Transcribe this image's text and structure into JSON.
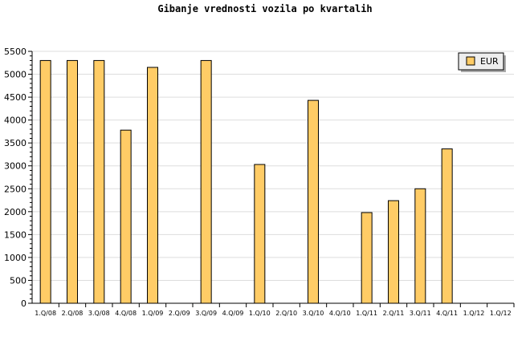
{
  "chart_data": {
    "type": "bar",
    "title": "Gibanje vrednosti vozila po kvartalih",
    "xlabel": "",
    "ylabel": "",
    "categories": [
      "1.Q/08",
      "2.Q/08",
      "3.Q/08",
      "4.Q/08",
      "1.Q/09",
      "2.Q/09",
      "3.Q/09",
      "4.Q/09",
      "1.Q/10",
      "2.Q/10",
      "3.Q/10",
      "4.Q/10",
      "1.Q/11",
      "2.Q/11",
      "3.Q/11",
      "4.Q/11",
      "1.Q/12",
      "1.Q/12"
    ],
    "series": [
      {
        "name": "EUR",
        "color": "#ffcc66",
        "values": [
          5300,
          5300,
          5300,
          3780,
          5150,
          0,
          5300,
          0,
          3030,
          0,
          4430,
          0,
          1980,
          2240,
          2500,
          3370,
          0,
          0
        ]
      }
    ],
    "ylim": [
      0,
      5500
    ],
    "yticks": [
      0,
      500,
      1000,
      1500,
      2000,
      2500,
      3000,
      3500,
      4000,
      4500,
      5000,
      5500
    ],
    "grid": true,
    "legend": "top-right"
  }
}
